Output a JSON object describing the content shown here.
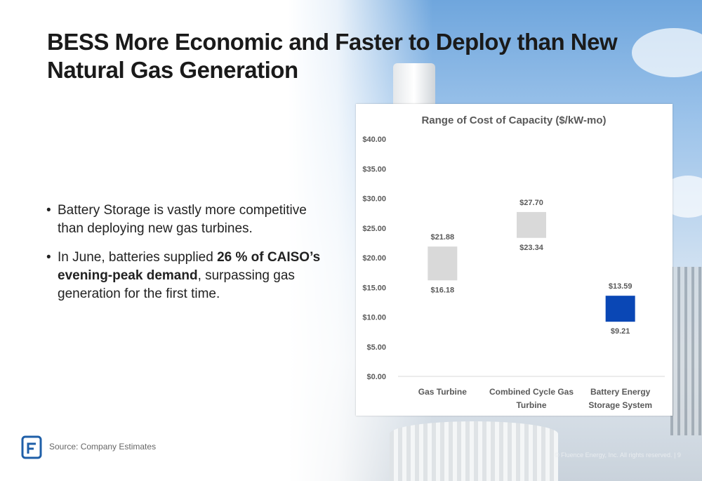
{
  "slide": {
    "title": "BESS More Economic and Faster to Deploy than New Natural Gas Generation",
    "bullets": [
      {
        "parts": [
          {
            "text": "Battery Storage is vastly more competitive than deploying new gas turbines.",
            "bold": false
          }
        ]
      },
      {
        "parts": [
          {
            "text": "In June, batteries supplied ",
            "bold": false
          },
          {
            "text": "26 % of CAISO’s evening-peak demand",
            "bold": true
          },
          {
            "text": ", surpassing gas generation for the first time.",
            "bold": false
          }
        ]
      }
    ],
    "source": "Source:  Company Estimates",
    "copyright": "© Fluence Energy, Inc. All rights reserved.",
    "page_number": "9"
  },
  "colors": {
    "gas_bar": "#d9d9d9",
    "bess_bar": "#0a47b5",
    "logo": "#1f5fa8",
    "chart_text": "#595959"
  },
  "chart_data": {
    "type": "bar",
    "title": "Range of Cost of Capacity ($/kW-mo)",
    "categories": [
      "Gas Turbine",
      "Combined Cycle Gas Turbine",
      "Battery Energy Storage System"
    ],
    "category_lines": [
      [
        "Gas Turbine"
      ],
      [
        "Combined Cycle Gas",
        "Turbine"
      ],
      [
        "Battery Energy",
        "Storage System"
      ]
    ],
    "low": [
      16.18,
      23.34,
      9.21
    ],
    "high": [
      21.88,
      27.7,
      13.59
    ],
    "low_labels": [
      "$16.18",
      "$23.34",
      "$9.21"
    ],
    "high_labels": [
      "$21.88",
      "$27.70",
      "$13.59"
    ],
    "bar_colors": [
      "#d9d9d9",
      "#d9d9d9",
      "#0a47b5"
    ],
    "ylim": [
      0,
      40
    ],
    "yticks": [
      "$0.00",
      "$5.00",
      "$10.00",
      "$15.00",
      "$20.00",
      "$25.00",
      "$30.00",
      "$35.00",
      "$40.00"
    ],
    "grid": false
  }
}
